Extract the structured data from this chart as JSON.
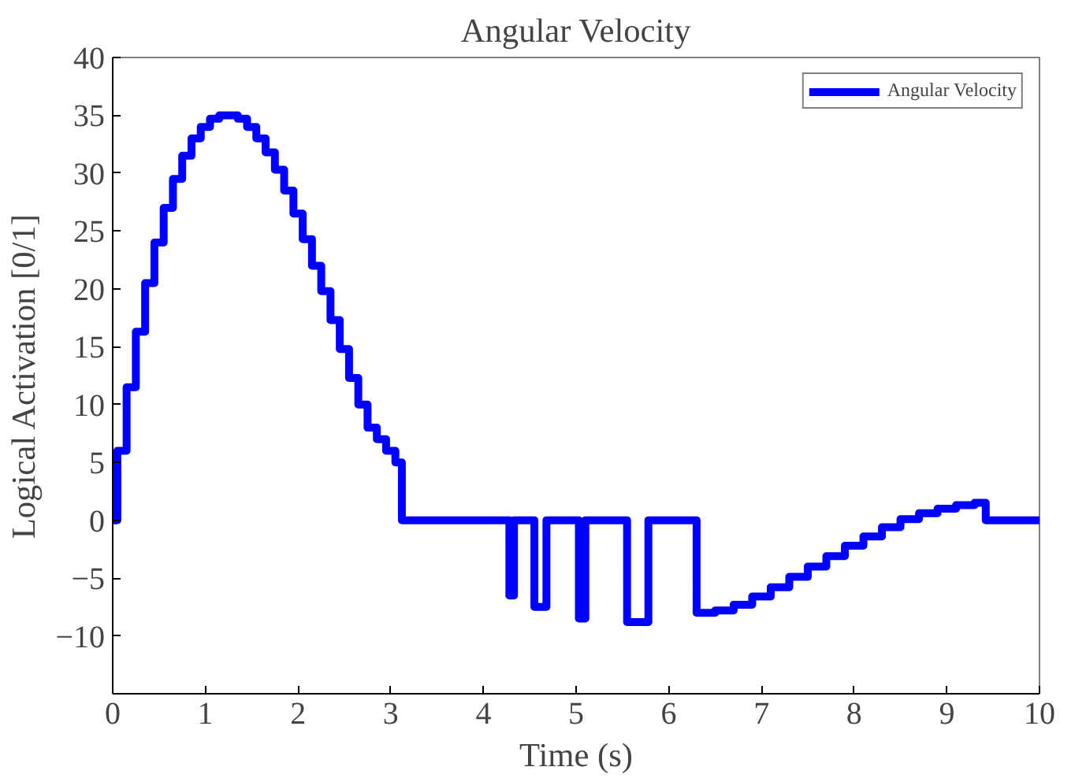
{
  "chart_data": {
    "type": "step",
    "title": "Angular Velocity",
    "xlabel": "Time (s)",
    "ylabel": "Logical Activation [0/1]",
    "xlim": [
      0,
      10
    ],
    "ylim": [
      -15,
      40
    ],
    "xticks": [
      0,
      1,
      2,
      3,
      4,
      5,
      6,
      7,
      8,
      9,
      10
    ],
    "yticks": [
      -10,
      -5,
      0,
      5,
      10,
      15,
      20,
      25,
      30,
      35,
      40
    ],
    "grid": false,
    "legend": "top right",
    "line_style": "solid",
    "series": [
      {
        "name": "Angular Velocity",
        "color": "#0000ff",
        "x": [
          0,
          0.05,
          0.15,
          0.25,
          0.35,
          0.45,
          0.55,
          0.65,
          0.75,
          0.85,
          0.95,
          1.05,
          1.15,
          1.25,
          1.35,
          1.45,
          1.55,
          1.65,
          1.75,
          1.85,
          1.95,
          2.05,
          2.15,
          2.25,
          2.35,
          2.45,
          2.55,
          2.65,
          2.75,
          2.85,
          2.95,
          3.05,
          3.12,
          4.28,
          4.33,
          4.55,
          4.68,
          5.03,
          5.1,
          5.55,
          5.78,
          6.3,
          6.5,
          6.7,
          6.9,
          7.1,
          7.3,
          7.5,
          7.7,
          7.9,
          8.1,
          8.3,
          8.5,
          8.7,
          8.9,
          9.1,
          9.3,
          9.42,
          10
        ],
        "values": [
          0,
          6,
          11.5,
          16.3,
          20.5,
          24,
          27,
          29.5,
          31.5,
          33,
          34,
          34.7,
          35,
          35,
          34.7,
          34,
          33,
          31.8,
          30.3,
          28.5,
          26.5,
          24.3,
          22,
          19.8,
          17.3,
          14.8,
          12.3,
          10,
          8,
          7,
          6,
          5,
          0,
          -6.5,
          0,
          -7.5,
          0,
          -8.5,
          0,
          -8.8,
          0,
          -8,
          -7.8,
          -7.3,
          -6.6,
          -5.8,
          -4.9,
          -4,
          -3.1,
          -2.2,
          -1.4,
          -0.6,
          0.1,
          0.6,
          1,
          1.3,
          1.5,
          0,
          0
        ]
      }
    ]
  }
}
